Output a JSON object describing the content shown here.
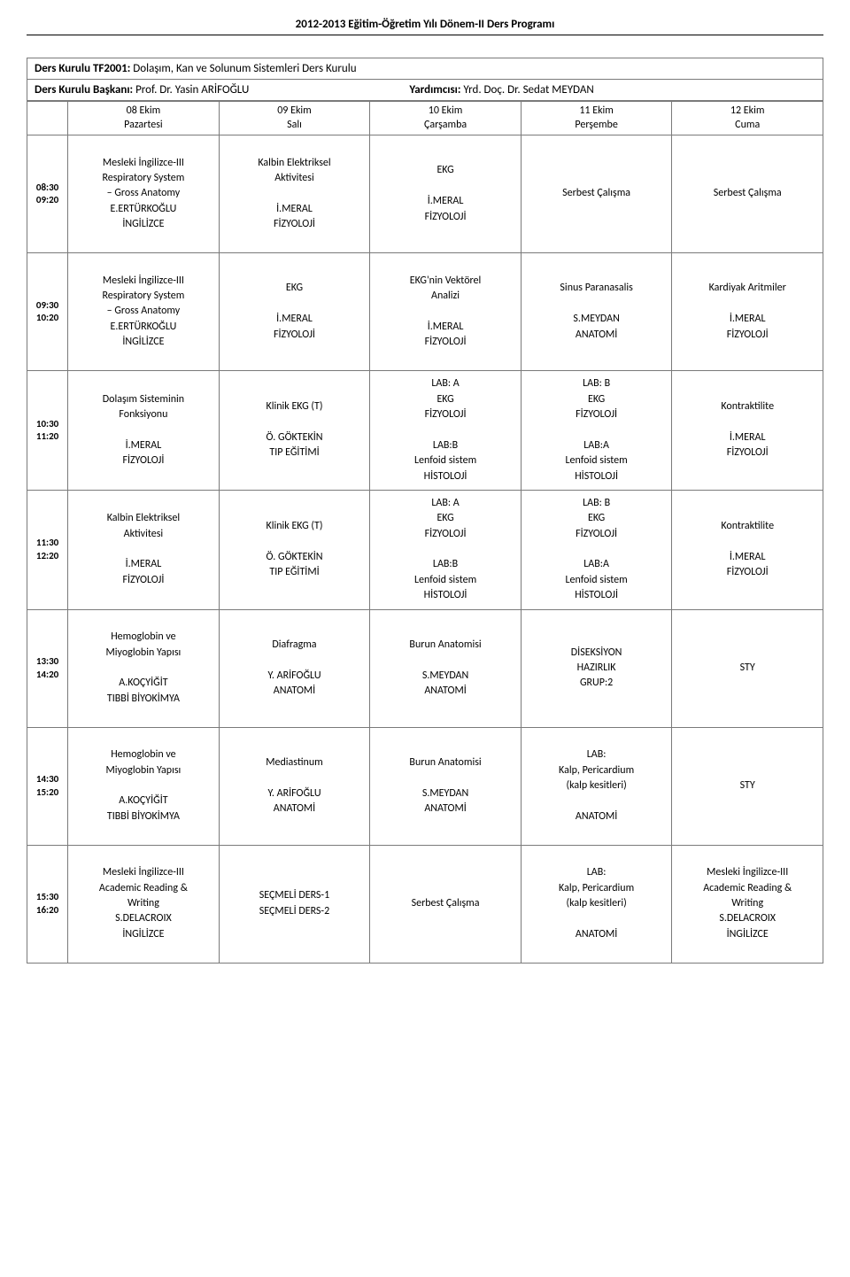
{
  "page_title": "2012-2013 Eğitim-Öğretim Yılı Dönem-II Ders Programı",
  "kurulu_label": "Ders Kurulu TF2001:",
  "kurulu_value": "Dolaşım, Kan ve Solunum Sistemleri Ders Kurulu",
  "baskani_label": "Ders Kurulu Başkanı:",
  "baskani_value": "Prof. Dr. Yasin ARİFOĞLU",
  "yardimcisi_label": "Yardımcısı:",
  "yardimcisi_value": "Yrd. Doç. Dr. Sedat MEYDAN",
  "days": [
    {
      "date": "08 Ekim",
      "name": "Pazartesi"
    },
    {
      "date": "09 Ekim",
      "name": "Salı"
    },
    {
      "date": "10 Ekim",
      "name": "Çarşamba"
    },
    {
      "date": "11 Ekim",
      "name": "Perşembe"
    },
    {
      "date": "12 Ekim",
      "name": "Cuma"
    }
  ],
  "rows": [
    {
      "time": "08:30\n09:20",
      "cells": [
        "Mesleki İngilizce-III\nRespiratory System\n– Gross Anatomy\nE.ERTÜRKOĞLU\nİNGİLİZCE",
        "Kalbin Elektriksel\nAktivitesi\n\nİ.MERAL\nFİZYOLOJİ",
        "EKG\n\nİ.MERAL\nFİZYOLOJİ",
        "Serbest Çalışma",
        "Serbest Çalışma"
      ]
    },
    {
      "time": "09:30\n10:20",
      "cells": [
        "Mesleki İngilizce-III\nRespiratory System\n– Gross Anatomy\nE.ERTÜRKOĞLU\nİNGİLİZCE",
        "EKG\n\nİ.MERAL\nFİZYOLOJİ",
        "EKG'nin Vektörel\nAnalizi\n\nİ.MERAL\nFİZYOLOJİ",
        "Sinus Paranasalis\n\nS.MEYDAN\nANATOMİ",
        "Kardiyak Aritmiler\n\nİ.MERAL\nFİZYOLOJİ"
      ]
    },
    {
      "time": "10:30\n11:20",
      "tall": true,
      "cells": [
        "Dolaşım Sisteminin\nFonksiyonu\n\nİ.MERAL\nFİZYOLOJİ",
        "Klinik EKG (T)\n\nÖ. GÖKTEKİN\nTIP EĞİTİMİ",
        "LAB: A\nEKG\nFİZYOLOJİ\n\nLAB:B\nLenfoid sistem\nHİSTOLOJİ",
        "LAB: B\nEKG\nFİZYOLOJİ\n\nLAB:A\nLenfoid sistem\nHİSTOLOJİ",
        "Kontraktilite\n\nİ.MERAL\nFİZYOLOJİ"
      ]
    },
    {
      "time": "11:30\n12:20",
      "tall": true,
      "cells": [
        "Kalbin Elektriksel\nAktivitesi\n\nİ.MERAL\nFİZYOLOJİ",
        "Klinik EKG (T)\n\nÖ. GÖKTEKİN\nTIP EĞİTİMİ",
        "LAB: A\nEKG\nFİZYOLOJİ\n\nLAB:B\nLenfoid sistem\nHİSTOLOJİ",
        "LAB: B\nEKG\nFİZYOLOJİ\n\nLAB:A\nLenfoid sistem\nHİSTOLOJİ",
        "Kontraktilite\n\nİ.MERAL\nFİZYOLOJİ"
      ]
    },
    {
      "time": "13:30\n14:20",
      "cells": [
        "Hemoglobin ve\nMiyoglobin Yapısı\n\nA.KOÇYİĞİT\nTIBBİ BİYOKİMYA",
        "Diafragma\n\nY. ARİFOĞLU\nANATOMİ",
        "Burun Anatomisi\n\nS.MEYDAN\nANATOMİ",
        "DİSEKSİYON\nHAZIRLIK\nGRUP:2",
        "STY"
      ]
    },
    {
      "time": "14:30\n15:20",
      "cells": [
        "Hemoglobin ve\nMiyoglobin Yapısı\n\nA.KOÇYİĞİT\nTIBBİ BİYOKİMYA",
        "Mediastinum\n\nY. ARİFOĞLU\nANATOMİ",
        "Burun Anatomisi\n\nS.MEYDAN\nANATOMİ",
        "LAB:\nKalp, Pericardium\n(kalp kesitleri)\n\nANATOMİ",
        "STY"
      ]
    },
    {
      "time": "15:30\n16:20",
      "cells": [
        "Mesleki İngilizce-III\nAcademic Reading &\nWriting\nS.DELACROIX\nİNGİLİZCE",
        "SEÇMELİ DERS-1\nSEÇMELİ DERS-2",
        "Serbest Çalışma",
        "LAB:\nKalp, Pericardium\n(kalp kesitleri)\n\nANATOMİ",
        "Mesleki İngilizce-III\nAcademic Reading &\nWriting\nS.DELACROIX\nİNGİLİZCE"
      ]
    }
  ]
}
